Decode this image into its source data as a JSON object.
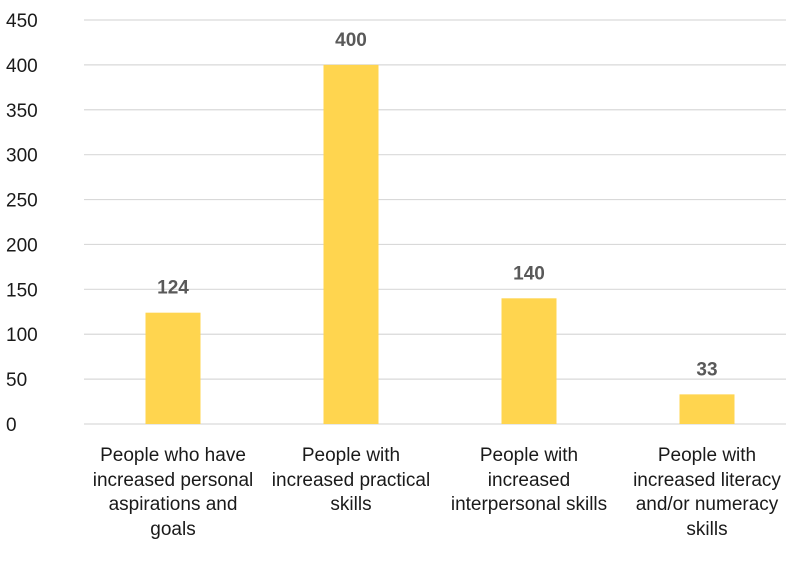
{
  "chart_data": {
    "type": "bar",
    "categories": [
      "People who have increased personal aspirations and goals",
      "People with increased practical skills",
      "People with increased interpersonal skills",
      "People with increased literacy and/or numeracy skills"
    ],
    "values": [
      124,
      400,
      140,
      33
    ],
    "data_labels": [
      "124",
      "400",
      "140",
      "33"
    ],
    "ylim": [
      0,
      450
    ],
    "yticks": [
      0,
      50,
      100,
      150,
      200,
      250,
      300,
      350,
      400,
      450
    ],
    "title": "",
    "xlabel": "",
    "ylabel": "",
    "grid": true,
    "legend": "none",
    "bar_color": "#FFD54F",
    "grid_color": "#d9d9d9",
    "label_color": "#595959"
  }
}
